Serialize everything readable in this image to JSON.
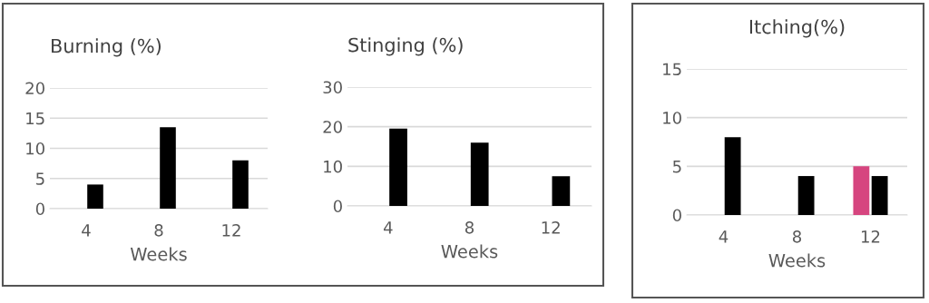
{
  "chart_data": [
    {
      "type": "bar",
      "title": "Burning (%)",
      "xlabel": "Weeks",
      "categories": [
        "4",
        "8",
        "12"
      ],
      "series": [
        {
          "color": "#d6457f",
          "values": [
            0,
            0,
            0
          ]
        },
        {
          "color": "#000000",
          "values": [
            4,
            13.5,
            8
          ]
        }
      ],
      "ylim": [
        0,
        20
      ],
      "yticks": [
        0,
        5,
        10,
        15,
        20
      ],
      "grid": "y"
    },
    {
      "type": "bar",
      "title": "Stinging (%)",
      "xlabel": "Weeks",
      "categories": [
        "4",
        "8",
        "12"
      ],
      "series": [
        {
          "color": "#d6457f",
          "values": [
            0,
            0,
            0
          ]
        },
        {
          "color": "#000000",
          "values": [
            19.5,
            16,
            7.5
          ]
        }
      ],
      "ylim": [
        0,
        30
      ],
      "yticks": [
        0,
        10,
        20,
        30
      ],
      "grid": "y"
    },
    {
      "type": "bar",
      "title": "Itching(%)",
      "xlabel": "Weeks",
      "categories": [
        "4",
        "8",
        "12"
      ],
      "series": [
        {
          "color": "#d6457f",
          "values": [
            0,
            0,
            5
          ]
        },
        {
          "color": "#000000",
          "values": [
            8,
            4,
            4
          ]
        }
      ],
      "ylim": [
        0,
        15
      ],
      "yticks": [
        0,
        5,
        10,
        15
      ],
      "grid": "y"
    }
  ]
}
